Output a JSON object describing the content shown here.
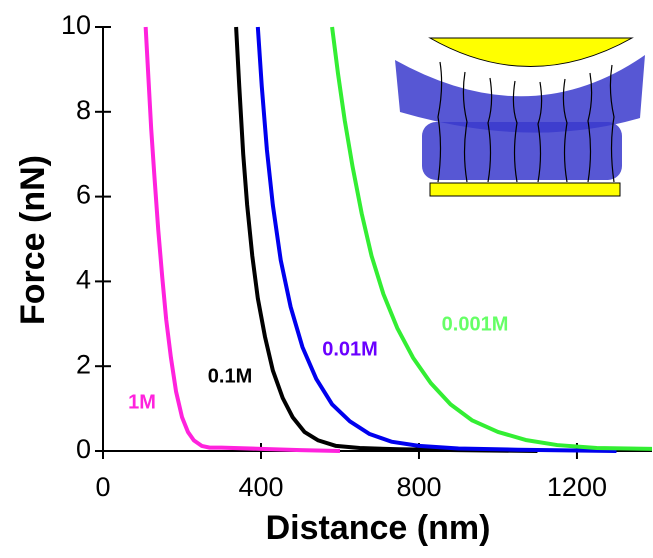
{
  "chart_data": {
    "type": "line",
    "x_label": "Distance (nm)",
    "y_label": "Force (nN)",
    "xlim": [
      0,
      1390
    ],
    "ylim": [
      0,
      10
    ],
    "xticks": [
      0,
      400,
      800,
      1200
    ],
    "yticks": [
      0,
      2,
      4,
      6,
      8,
      10
    ],
    "series": [
      {
        "name": "1M",
        "color": "#ff22dd",
        "label_color": "#ff22dd",
        "x": [
          108,
          115,
          122,
          130,
          140,
          150,
          160,
          172,
          185,
          200,
          215,
          230,
          250,
          270,
          300,
          400,
          500,
          600
        ],
        "values": [
          10,
          8.8,
          7.6,
          6.5,
          5.2,
          4.1,
          3.1,
          2.2,
          1.4,
          0.8,
          0.45,
          0.25,
          0.12,
          0.08,
          0.08,
          0.05,
          0.02,
          0.0
        ]
      },
      {
        "name": "0.1M",
        "color": "#000000",
        "label_color": "#000000",
        "x": [
          337,
          345,
          355,
          365,
          378,
          392,
          410,
          430,
          455,
          480,
          510,
          545,
          590,
          650,
          750,
          900,
          1100
        ],
        "values": [
          10,
          8.6,
          7.0,
          5.8,
          4.6,
          3.6,
          2.7,
          1.9,
          1.25,
          0.8,
          0.45,
          0.25,
          0.12,
          0.07,
          0.04,
          0.02,
          0.0
        ]
      },
      {
        "name": "0.01M",
        "color": "#0000ee",
        "label_color": "#6a00ff",
        "x": [
          392,
          402,
          415,
          430,
          450,
          475,
          505,
          540,
          580,
          625,
          675,
          730,
          800,
          900,
          1050,
          1300
        ],
        "values": [
          10,
          8.6,
          7.1,
          5.8,
          4.5,
          3.4,
          2.45,
          1.7,
          1.1,
          0.7,
          0.4,
          0.22,
          0.12,
          0.06,
          0.03,
          0.0
        ]
      },
      {
        "name": "0.001M",
        "color": "#33ee33",
        "label_color": "#66ff66",
        "x": [
          580,
          595,
          612,
          632,
          655,
          680,
          710,
          745,
          785,
          830,
          880,
          935,
          1000,
          1070,
          1150,
          1250,
          1390
        ],
        "values": [
          10,
          8.9,
          7.8,
          6.7,
          5.6,
          4.6,
          3.7,
          2.9,
          2.2,
          1.6,
          1.1,
          0.72,
          0.45,
          0.26,
          0.14,
          0.07,
          0.05
        ]
      }
    ]
  }
}
